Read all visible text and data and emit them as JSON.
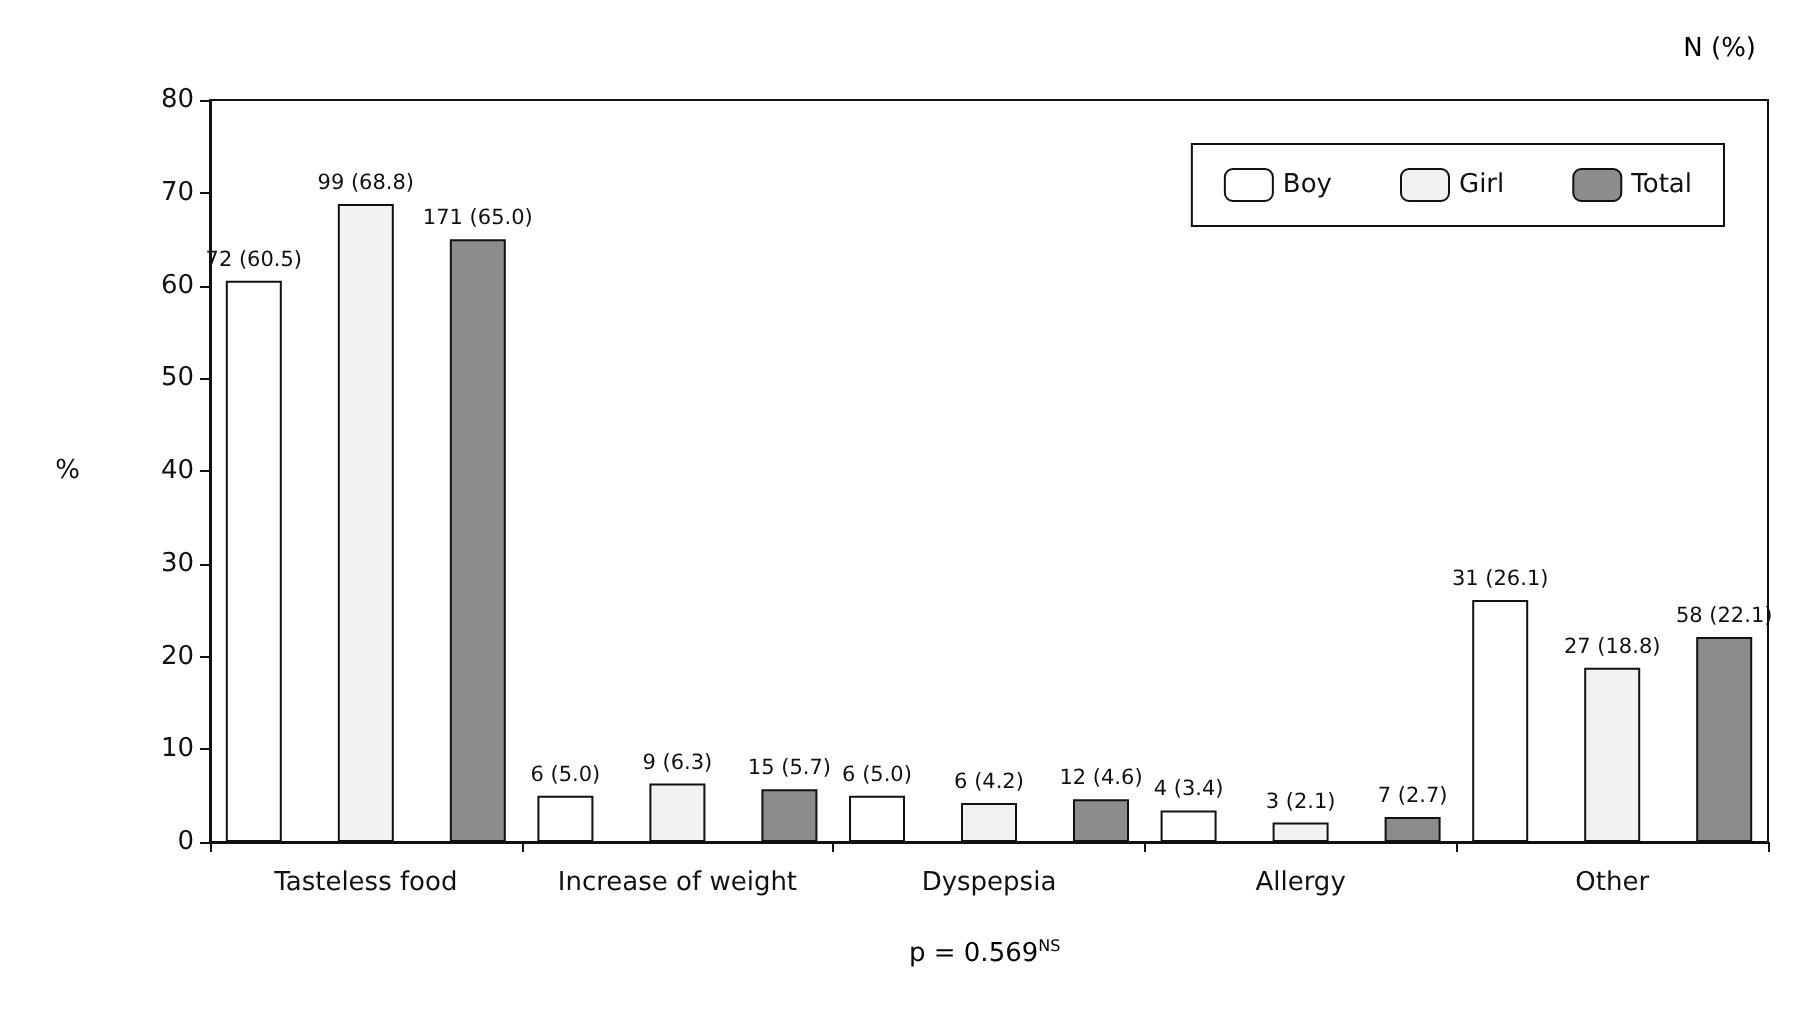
{
  "chart_data": {
    "type": "bar",
    "ylabel": "%",
    "categories": [
      "Tasteless food",
      "Increase of weight",
      "Dyspepsia",
      "Allergy",
      "Other"
    ],
    "series": [
      {
        "name": "Boy",
        "color": "#ffffff",
        "values": [
          60.5,
          5.0,
          5.0,
          3.4,
          26.1
        ],
        "value_labels": [
          "72 (60.5)",
          "6 (5.0)",
          "6 (5.0)",
          "4 (3.4)",
          "31 (26.1)"
        ]
      },
      {
        "name": "Girl",
        "color": "#f2f2f2",
        "values": [
          68.8,
          6.3,
          4.2,
          2.1,
          18.8
        ],
        "value_labels": [
          "99 (68.8)",
          "9 (6.3)",
          "6 (4.2)",
          "3 (2.1)",
          "27 (18.8)"
        ]
      },
      {
        "name": "Total",
        "color": "#8c8c8c",
        "values": [
          65.0,
          5.7,
          4.6,
          2.7,
          22.1
        ],
        "value_labels": [
          "171 (65.0)",
          "15 (5.7)",
          "12 (4.6)",
          "7 (2.7)",
          "58 (22.1)"
        ]
      }
    ],
    "ylim": [
      0,
      80
    ],
    "yticks": [
      0,
      10,
      20,
      30,
      40,
      50,
      60,
      70,
      80
    ],
    "grid": false,
    "legend": "top right",
    "annotations": [
      "N (%)",
      "p = 0.569$^{NS}$"
    ]
  }
}
